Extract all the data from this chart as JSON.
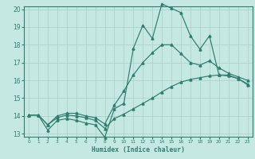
{
  "xlabel": "Humidex (Indice chaleur)",
  "bg_color": "#c5e8e2",
  "line_color": "#2e7d6e",
  "grid_color": "#aacfc8",
  "xmin": 0,
  "xmax": 23,
  "ymin": 13,
  "ymax": 20,
  "x_ticks": [
    0,
    1,
    2,
    3,
    4,
    5,
    6,
    7,
    8,
    9,
    10,
    11,
    12,
    13,
    14,
    15,
    16,
    17,
    18,
    19,
    20,
    21,
    22,
    23
  ],
  "y_ticks": [
    13,
    14,
    15,
    16,
    17,
    18,
    19,
    20
  ],
  "line1_x": [
    0,
    1,
    2,
    3,
    4,
    5,
    6,
    7,
    8,
    9,
    10,
    11,
    12,
    13,
    14,
    15,
    16,
    17,
    18,
    19,
    20,
    21,
    22,
    23
  ],
  "line1_y": [
    14.05,
    14.05,
    13.2,
    13.75,
    13.85,
    13.75,
    13.6,
    13.5,
    12.8,
    14.4,
    14.7,
    17.8,
    19.1,
    18.35,
    20.3,
    20.05,
    19.8,
    18.5,
    17.75,
    18.5,
    16.3,
    16.3,
    16.1,
    15.75
  ],
  "line2_x": [
    0,
    1,
    2,
    3,
    4,
    5,
    6,
    7,
    8,
    9,
    10,
    11,
    12,
    13,
    14,
    15,
    16,
    17,
    18,
    19,
    20,
    21,
    22,
    23
  ],
  "line2_y": [
    14.05,
    14.05,
    13.5,
    13.9,
    14.05,
    14.0,
    13.9,
    13.75,
    13.3,
    13.85,
    14.1,
    14.4,
    14.7,
    15.0,
    15.35,
    15.65,
    15.9,
    16.05,
    16.15,
    16.25,
    16.3,
    16.25,
    16.1,
    15.8
  ],
  "line3_x": [
    0,
    1,
    2,
    3,
    4,
    5,
    6,
    7,
    8,
    9,
    10,
    11,
    12,
    13,
    14,
    15,
    16,
    17,
    18,
    19,
    20,
    21,
    22,
    23
  ],
  "line3_y": [
    14.05,
    14.05,
    13.5,
    14.0,
    14.15,
    14.15,
    14.0,
    13.9,
    13.55,
    14.6,
    15.4,
    16.3,
    17.0,
    17.55,
    18.0,
    18.0,
    17.5,
    17.0,
    16.85,
    17.1,
    16.7,
    16.4,
    16.2,
    16.0
  ]
}
